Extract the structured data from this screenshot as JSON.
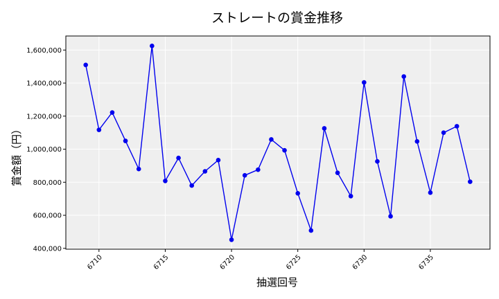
{
  "chart_data": {
    "type": "line",
    "title": "ストレートの賞金推移",
    "xlabel": "抽選回号",
    "ylabel": "賞金額（円）",
    "xlim": [
      6707.5,
      6739.5
    ],
    "ylim": [
      395000,
      1685000
    ],
    "xticks": [
      6710,
      6715,
      6720,
      6725,
      6730,
      6735
    ],
    "yticks": [
      400000,
      600000,
      800000,
      1000000,
      1200000,
      1400000,
      1600000
    ],
    "ytick_labels": [
      "400,000",
      "600,000",
      "800,000",
      "1,000,000",
      "1,200,000",
      "1,400,000",
      "1,600,000"
    ],
    "grid": true,
    "colors": {
      "line": "#0000ee",
      "marker": "#0000ee",
      "plot_bg": "#efefef",
      "grid": "#ffffff"
    },
    "series": [
      {
        "x": [
          6709,
          6710,
          6711,
          6712,
          6713,
          6714,
          6715,
          6716,
          6717,
          6718,
          6719,
          6720,
          6721,
          6722,
          6723,
          6724,
          6725,
          6726,
          6727,
          6728,
          6729,
          6730,
          6731,
          6732,
          6733,
          6734,
          6735,
          6736,
          6737,
          6738
        ],
        "values": [
          1510000,
          1117000,
          1222000,
          1050000,
          880000,
          1625000,
          808000,
          947000,
          780000,
          866000,
          934000,
          452000,
          842000,
          876000,
          1059000,
          993000,
          733000,
          508000,
          1126000,
          857000,
          716000,
          1404000,
          926000,
          594000,
          1440000,
          1047000,
          737000,
          1100000,
          1139000,
          803000
        ]
      }
    ]
  }
}
